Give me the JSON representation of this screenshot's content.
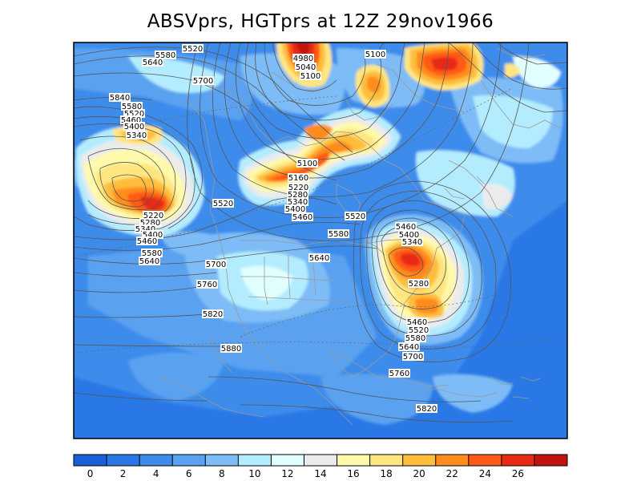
{
  "title": "ABSVprs, HGTprs at 12Z  29nov1966",
  "fill_colors": [
    "#1a5fd8",
    "#2a78e6",
    "#3d8cec",
    "#5aa2f0",
    "#7dbcf6",
    "#b4ecff",
    "#e1ffff",
    "#ebebeb",
    "#fffaab",
    "#ffe680",
    "#ffbd3d",
    "#ff8c1f",
    "#ff5a17",
    "#e62a14",
    "#c21311"
  ],
  "colorbar_ticks": [
    "0",
    "2",
    "4",
    "6",
    "8",
    "10",
    "12",
    "14",
    "16",
    "18",
    "20",
    "22",
    "24",
    "26"
  ],
  "height_labels": [
    "5580",
    "5520",
    "5640",
    "5700",
    "5840",
    "5580",
    "5520",
    "5460",
    "5400",
    "5340",
    "4980",
    "5040",
    "5100",
    "5100",
    "5100",
    "5160",
    "5220",
    "5280",
    "5340",
    "5400",
    "5460",
    "5520",
    "5520",
    "5580",
    "5640",
    "5220",
    "5280",
    "5340",
    "5400",
    "5460",
    "5580",
    "5640",
    "5700",
    "5760",
    "5820",
    "5880",
    "5460",
    "5400",
    "5340",
    "5280",
    "5460",
    "5520",
    "5580",
    "5640",
    "5700",
    "5760",
    "5820"
  ]
}
